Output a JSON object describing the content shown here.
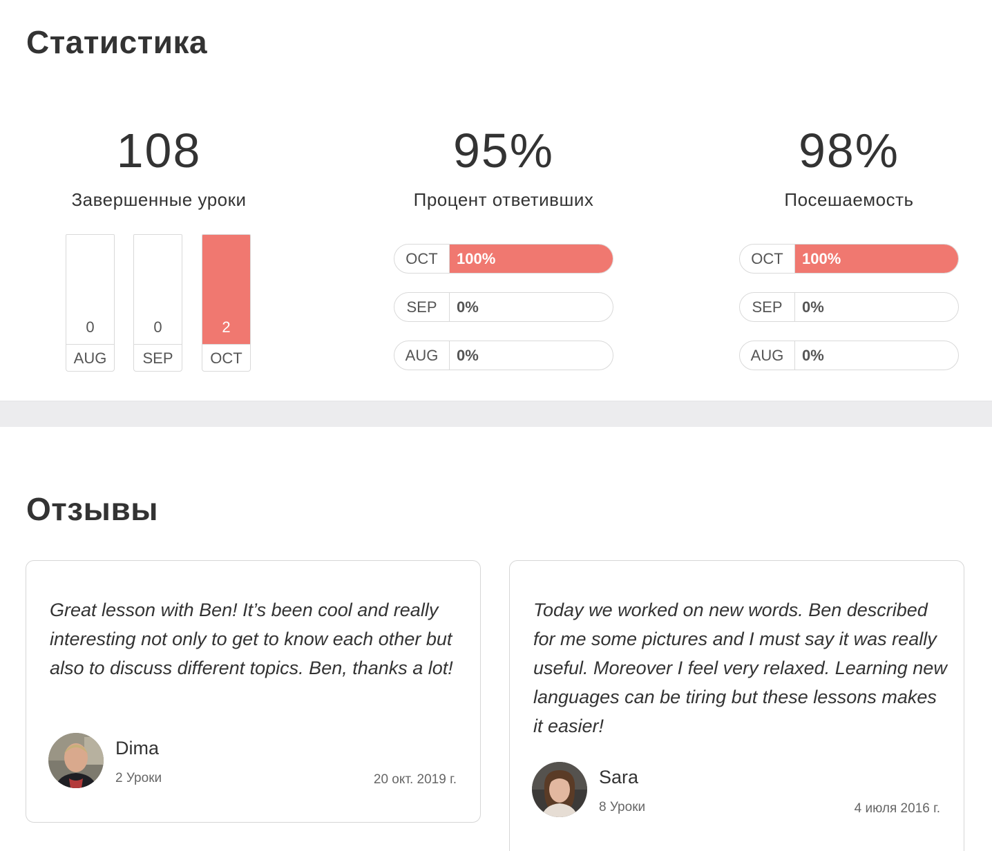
{
  "statistics": {
    "title": "Статистика",
    "completed": {
      "value": "108",
      "label": "Завершенные уроки",
      "months": [
        {
          "month": "AUG",
          "value": "0",
          "fill": 0
        },
        {
          "month": "SEP",
          "value": "0",
          "fill": 0
        },
        {
          "month": "OCT",
          "value": "2",
          "fill": 1
        }
      ]
    },
    "response_rate": {
      "value": "95%",
      "label": "Процент ответивших",
      "months": [
        {
          "month": "OCT",
          "value": "100%",
          "fill": 1
        },
        {
          "month": "SEP",
          "value": "0%",
          "fill": 0
        },
        {
          "month": "AUG",
          "value": "0%",
          "fill": 0
        }
      ]
    },
    "attendance": {
      "value": "98%",
      "label": "Посешаемость",
      "months": [
        {
          "month": "OCT",
          "value": "100%",
          "fill": 1
        },
        {
          "month": "SEP",
          "value": "0%",
          "fill": 0
        },
        {
          "month": "AUG",
          "value": "0%",
          "fill": 0
        }
      ]
    },
    "accent_color": "#f07870"
  },
  "reviews": {
    "title": "Отзывы",
    "items": [
      {
        "text": "Great lesson with Ben! It’s been cool and really interesting not only to get to know each other but also to discuss different topics. Ben, thanks a lot!",
        "name": "Dima",
        "lessons": "2 Уроки",
        "date": "20 окт. 2019 г.",
        "avatar": "avatar-photo-male"
      },
      {
        "text": "Today we worked on new words. Ben described for me some pictures and I must say it was really useful. Moreover I feel very relaxed. Learning new languages can be tiring but these lessons makes it easier!",
        "name": "Sara",
        "lessons": "8 Уроки",
        "date": "4 июля 2016 г.",
        "avatar": "avatar-photo-female"
      }
    ]
  }
}
